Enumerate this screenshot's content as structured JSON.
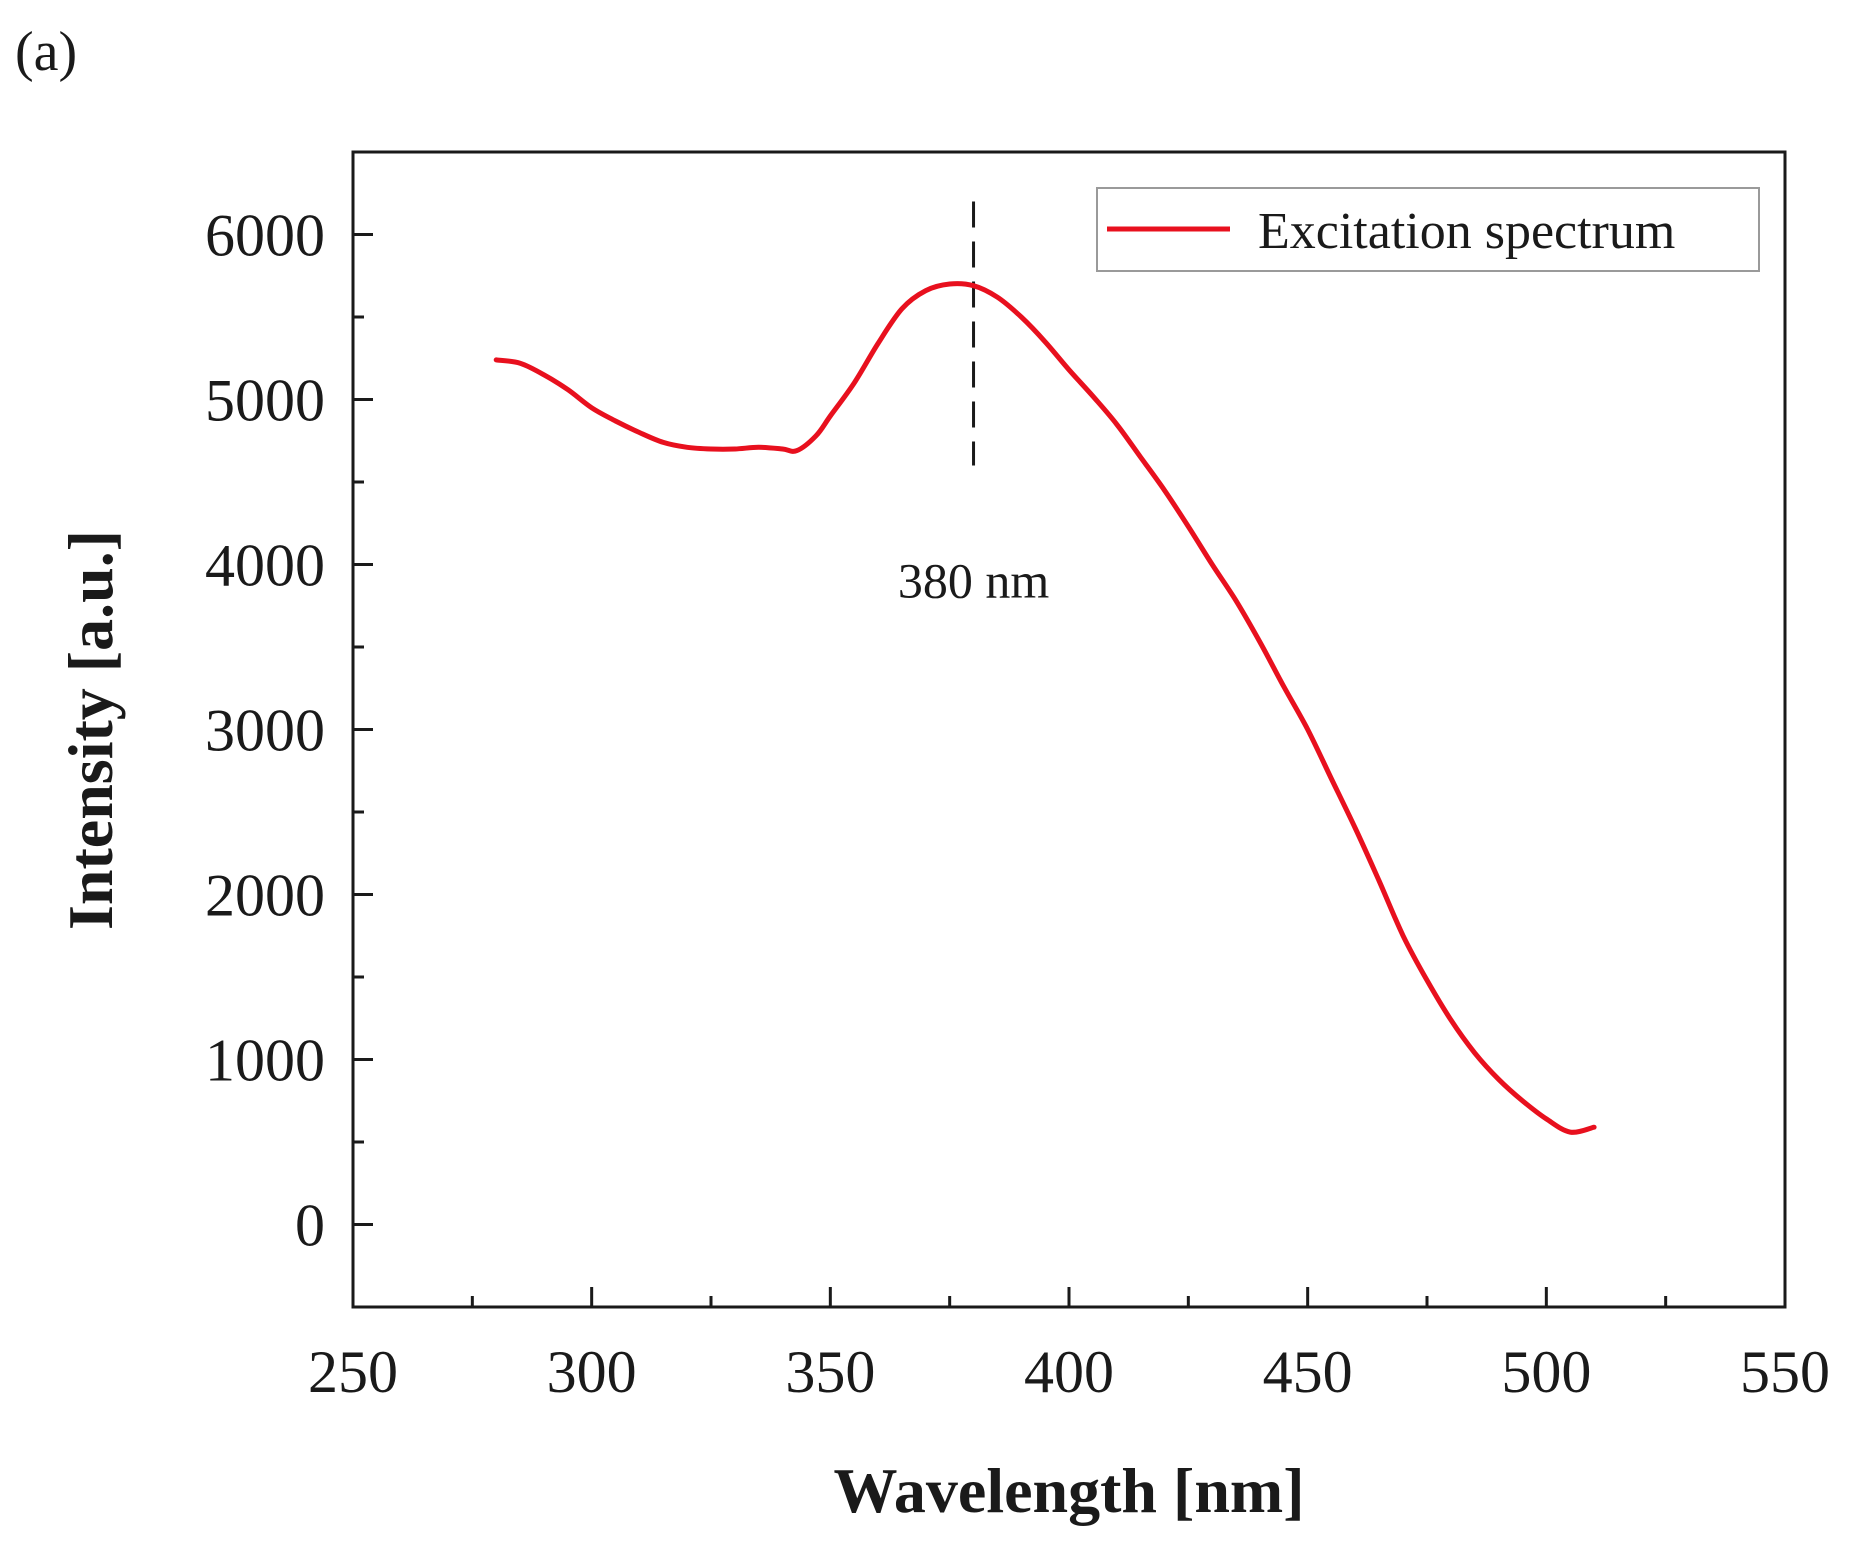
{
  "panel_label": "(a)",
  "chart_data": {
    "type": "line",
    "title": "",
    "xlabel": "Wavelength [nm]",
    "ylabel": "Intensity [a.u.]",
    "xlim": [
      250,
      550
    ],
    "ylim": [
      -500,
      6500
    ],
    "xticks": [
      250,
      300,
      350,
      400,
      450,
      500,
      550
    ],
    "yticks": [
      0,
      1000,
      2000,
      3000,
      4000,
      5000,
      6000
    ],
    "grid": false,
    "legend_position": "top-right",
    "series": [
      {
        "name": "Excitation spectrum",
        "color": "#e8101e",
        "x": [
          280,
          285,
          290,
          295,
          300,
          305,
          310,
          315,
          320,
          325,
          330,
          335,
          340,
          343,
          347,
          350,
          355,
          360,
          365,
          370,
          375,
          380,
          385,
          390,
          395,
          400,
          405,
          410,
          415,
          420,
          425,
          430,
          435,
          440,
          445,
          450,
          455,
          460,
          465,
          470,
          475,
          480,
          485,
          490,
          495,
          500,
          505,
          510
        ],
        "y": [
          5240,
          5220,
          5150,
          5060,
          4950,
          4870,
          4800,
          4740,
          4710,
          4700,
          4700,
          4710,
          4700,
          4690,
          4780,
          4900,
          5100,
          5340,
          5550,
          5660,
          5700,
          5690,
          5620,
          5500,
          5350,
          5180,
          5020,
          4850,
          4650,
          4450,
          4230,
          4000,
          3780,
          3530,
          3260,
          3000,
          2700,
          2400,
          2080,
          1750,
          1480,
          1240,
          1040,
          880,
          750,
          640,
          560,
          590
        ]
      }
    ],
    "annotations": [
      {
        "text": "380 nm",
        "x": 380,
        "y": 4000
      }
    ],
    "reference_lines": [
      {
        "type": "vertical",
        "x": 380,
        "y_range": [
          4600,
          6200
        ],
        "style": "dashed"
      }
    ]
  }
}
